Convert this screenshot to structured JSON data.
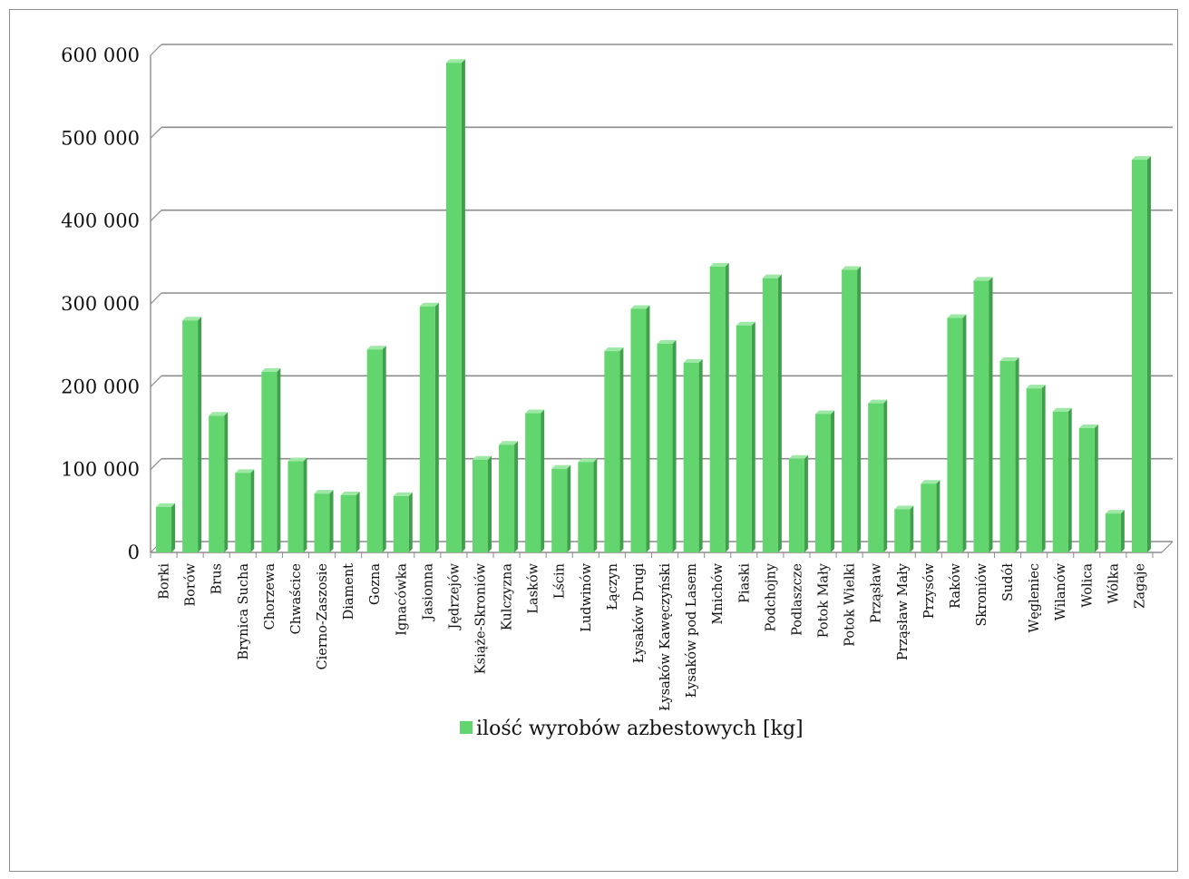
{
  "chart_data": {
    "type": "bar",
    "categories": [
      "Borki",
      "Borów",
      "Brus",
      "Brynica Sucha",
      "Chorzewa",
      "Chwaścice",
      "Cierno-Zaszosie",
      "Diament",
      "Gozna",
      "Ignacówka",
      "Jasionna",
      "Jędrzejów",
      "Książe-Skroniów",
      "Kulczyzna",
      "Lasków",
      "Lścin",
      "Ludwinów",
      "Łączyn",
      "Łysaków Drugi",
      "Łysaków Kawęczyński",
      "Łysaków pod Lasem",
      "Mnichów",
      "Piaski",
      "Podchojny",
      "Podlaszcze",
      "Potok Mały",
      "Potok Wielki",
      "Prząsław",
      "Prząsław Mały",
      "Przysów",
      "Raków",
      "Skroniów",
      "Sudół",
      "Węgleniec",
      "Wilanów",
      "Wolica",
      "Wólka",
      "Zagaje"
    ],
    "series": [
      {
        "name": "ilość wyrobów azbestowych [kg]",
        "values": [
          55000,
          280000,
          165000,
          96000,
          218000,
          110000,
          71000,
          69000,
          245000,
          68000,
          297000,
          591000,
          112000,
          130000,
          168000,
          101000,
          109000,
          243000,
          294000,
          252000,
          229000,
          345000,
          274000,
          331000,
          113000,
          167000,
          341000,
          180000,
          52000,
          83000,
          283000,
          328000,
          231000,
          198000,
          170000,
          150000,
          47000,
          474000
        ]
      }
    ],
    "yticks": [
      "0",
      "100 000",
      "200 000",
      "300 000",
      "400 000",
      "500 000",
      "600 000"
    ],
    "ylim": [
      0,
      600000
    ],
    "grid": true,
    "legend_position": "bottom",
    "colors": {
      "bar_front": "#63d56f",
      "bar_side": "#3f9f4b",
      "bar_top": "#9ce8a4",
      "grid": "#8c8c8c",
      "legend_swatch": "#63d56f"
    }
  }
}
